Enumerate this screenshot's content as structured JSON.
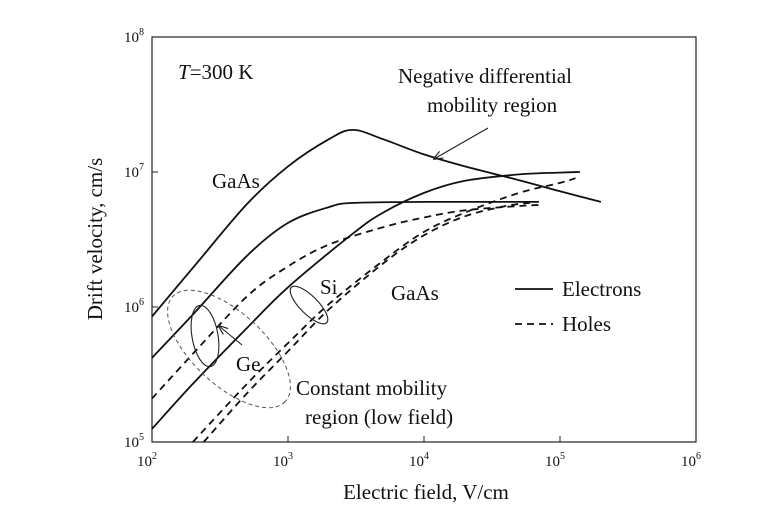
{
  "chart_data": {
    "type": "line",
    "title": "",
    "xlabel": "Electric field, V/cm",
    "ylabel": "Drift velocity, cm/s",
    "xscale": "log",
    "yscale": "log",
    "xlim": [
      100,
      1000000
    ],
    "ylim": [
      100000,
      100000000
    ],
    "x_ticks": [
      {
        "base": "10",
        "exp": "2",
        "value": 100
      },
      {
        "base": "10",
        "exp": "3",
        "value": 1000
      },
      {
        "base": "10",
        "exp": "4",
        "value": 10000
      },
      {
        "base": "10",
        "exp": "5",
        "value": 100000
      },
      {
        "base": "10",
        "exp": "6",
        "value": 1000000
      }
    ],
    "y_ticks": [
      {
        "base": "10",
        "exp": "5",
        "value": 100000
      },
      {
        "base": "10",
        "exp": "6",
        "value": 1000000
      },
      {
        "base": "10",
        "exp": "7",
        "value": 10000000
      },
      {
        "base": "10",
        "exp": "8",
        "value": 100000000
      }
    ],
    "temperature": {
      "symbol": "T",
      "value": "=300 K"
    },
    "legend": {
      "position": "right",
      "entries": [
        {
          "label": "Electrons",
          "style": "solid"
        },
        {
          "label": "Holes",
          "style": "dashed"
        }
      ]
    },
    "annotations": {
      "ndm_line1": "Negative differential",
      "ndm_line2": "mobility region",
      "cm_line1": "Constant mobility",
      "cm_line2": "region (low field)",
      "label_gaas_upper": "GaAs",
      "label_gaas_lower": "GaAs",
      "label_si": "Si",
      "label_ge": "Ge"
    },
    "series": [
      {
        "material": "GaAs",
        "carrier": "electrons",
        "style": "solid",
        "points": [
          [
            100,
            850000
          ],
          [
            200,
            1950000
          ],
          [
            500,
            5800000
          ],
          [
            1000,
            11000000
          ],
          [
            2000,
            17500000
          ],
          [
            3000,
            20500000
          ],
          [
            5000,
            17500000
          ],
          [
            10000,
            13500000
          ],
          [
            20000,
            11000000
          ],
          [
            50000,
            8700000
          ],
          [
            100000,
            7200000
          ],
          [
            200000,
            6000000
          ]
        ]
      },
      {
        "material": "Ge",
        "carrier": "electrons",
        "style": "solid",
        "points": [
          [
            100,
            420000
          ],
          [
            200,
            880000
          ],
          [
            500,
            2400000
          ],
          [
            1000,
            4200000
          ],
          [
            2000,
            5500000
          ],
          [
            3000,
            5900000
          ],
          [
            10000,
            6000000
          ],
          [
            70000,
            6000000
          ]
        ]
      },
      {
        "material": "Si",
        "carrier": "electrons",
        "style": "solid",
        "points": [
          [
            100,
            125000
          ],
          [
            200,
            270000
          ],
          [
            500,
            700000
          ],
          [
            1000,
            1400000
          ],
          [
            3000,
            3500000
          ],
          [
            5000,
            5000000
          ],
          [
            10000,
            7000000
          ],
          [
            20000,
            8600000
          ],
          [
            50000,
            9600000
          ],
          [
            100000,
            9900000
          ],
          [
            140000,
            10000000
          ]
        ]
      },
      {
        "material": "Ge",
        "carrier": "holes",
        "style": "dashed",
        "points": [
          [
            100,
            210000
          ],
          [
            200,
            450000
          ],
          [
            500,
            1200000
          ],
          [
            1000,
            2000000
          ],
          [
            2000,
            2900000
          ],
          [
            5000,
            3900000
          ],
          [
            10000,
            4600000
          ],
          [
            20000,
            5200000
          ],
          [
            50000,
            5600000
          ],
          [
            70000,
            5700000
          ]
        ]
      },
      {
        "material": "Si",
        "carrier": "holes",
        "style": "dashed",
        "points": [
          [
            200,
            100000
          ],
          [
            500,
            270000
          ],
          [
            1000,
            540000
          ],
          [
            2000,
            1050000
          ],
          [
            5000,
            2200000
          ],
          [
            10000,
            3600000
          ],
          [
            20000,
            5000000
          ],
          [
            50000,
            7000000
          ],
          [
            100000,
            8300000
          ],
          [
            130000,
            9000000
          ]
        ]
      },
      {
        "material": "GaAs",
        "carrier": "holes",
        "style": "dashed",
        "points": [
          [
            240,
            100000
          ],
          [
            500,
            230000
          ],
          [
            1000,
            470000
          ],
          [
            2000,
            960000
          ],
          [
            5000,
            2100000
          ],
          [
            10000,
            3400000
          ],
          [
            20000,
            4700000
          ],
          [
            40000,
            5600000
          ],
          [
            60000,
            5900000
          ]
        ]
      }
    ]
  }
}
